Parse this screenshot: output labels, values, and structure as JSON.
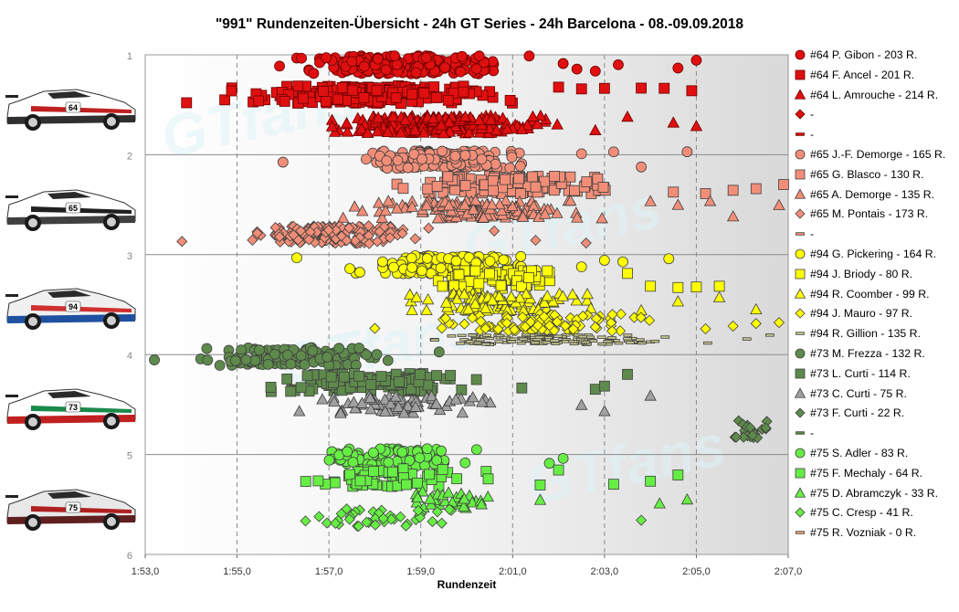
{
  "chart_data": {
    "type": "scatter",
    "title": "\"991\" Rundenzeiten-Übersicht  - 24h GT Series - 24h Barcelona  - 08.-09.09.2018",
    "xlabel": "Rundenzeit",
    "ylabel": "",
    "xlim": [
      113.0,
      127.0
    ],
    "ylim": [
      1,
      6
    ],
    "x_ticks": [
      "1:53,0",
      "1:55,0",
      "1:57,0",
      "1:59,0",
      "2:01,0",
      "2:03,0",
      "2:05,0",
      "2:07,0"
    ],
    "y_ticks": [
      "1",
      "2",
      "3",
      "4",
      "5",
      "6"
    ],
    "grid": "vertical dashed, horizontal solid",
    "legend_position": "right",
    "watermark": "GTfans",
    "series": [
      {
        "name": "#64 P. Gibon - 203 R.",
        "marker": "circle",
        "color": "#e01010",
        "y": 1.1,
        "range": [
          115.6,
          121.6
        ],
        "outliers": [
          122.1,
          122.4,
          122.8,
          123.3,
          124.6,
          125.0
        ],
        "count": 203
      },
      {
        "name": "#64 F. Ancel - 201 R.",
        "marker": "square",
        "color": "#e01010",
        "y": 1.4,
        "range": [
          114.4,
          121.6
        ],
        "outliers": [
          113.9,
          122.0,
          122.5,
          123.0,
          123.8,
          124.3,
          124.9
        ],
        "count": 201
      },
      {
        "name": "#64 L. Amrouche - 214 R.",
        "marker": "triangle",
        "color": "#e01010",
        "y": 1.7,
        "range": [
          116.2,
          122.4
        ],
        "outliers": [
          122.8,
          123.5,
          124.5,
          125.0
        ],
        "count": 214
      },
      {
        "name": "-",
        "marker": "diamond",
        "color": "#e01010",
        "y": null,
        "count": 0
      },
      {
        "name": "-",
        "marker": "dash",
        "color": "#e01010",
        "y": null,
        "count": 0
      },
      {
        "name": "#65 J.-F. Demorge - 165 R.",
        "marker": "circle",
        "color": "#f28e78",
        "y": 2.05,
        "range": [
          116.8,
          121.8
        ],
        "outliers": [
          116.0,
          122.5,
          123.2,
          123.8,
          124.8
        ],
        "count": 165
      },
      {
        "name": "#65 G. Blasco - 130 R.",
        "marker": "square",
        "color": "#f28e78",
        "y": 2.3,
        "range": [
          118.0,
          124.0
        ],
        "outliers": [
          124.5,
          125.2,
          125.8,
          126.3,
          126.9
        ],
        "count": 130
      },
      {
        "name": "#65 A. Demorge - 135 R.",
        "marker": "triangle",
        "color": "#f28e78",
        "y": 2.55,
        "range": [
          116.8,
          123.6
        ],
        "outliers": [
          124.0,
          124.6,
          125.3,
          125.8,
          126.8
        ],
        "count": 135
      },
      {
        "name": "#65 M. Pontais - 173 R.",
        "marker": "diamond",
        "color": "#f28e78",
        "y": 2.8,
        "range": [
          114.6,
          119.6
        ],
        "outliers": [
          113.8,
          120.6,
          121.5,
          122.6
        ],
        "count": 173
      },
      {
        "name": "-",
        "marker": "dash",
        "color": "#f28e78",
        "y": null,
        "count": 0
      },
      {
        "name": "#94 G. Pickering - 164 R.",
        "marker": "circle",
        "color": "#ffff00",
        "y": 3.1,
        "range": [
          117.2,
          122.0
        ],
        "outliers": [
          116.3,
          122.5,
          123.0,
          123.4,
          124.4
        ],
        "count": 164
      },
      {
        "name": "#94 J. Briody - 80 R.",
        "marker": "square",
        "color": "#ffff00",
        "y": 3.25,
        "range": [
          118.6,
          122.8
        ],
        "outliers": [
          123.5,
          124.0,
          124.6,
          125.0,
          125.5
        ],
        "count": 80
      },
      {
        "name": "#94 R. Coomber - 99 R.",
        "marker": "triangle",
        "color": "#ffff00",
        "y": 3.48,
        "range": [
          118.2,
          123.2
        ],
        "outliers": [
          123.8,
          124.6,
          125.5,
          126.3
        ],
        "count": 99
      },
      {
        "name": "#94 J. Mauro - 97 R.",
        "marker": "diamond",
        "color": "#ffff00",
        "y": 3.68,
        "range": [
          118.8,
          124.6
        ],
        "outliers": [
          118.0,
          125.2,
          125.8,
          126.3,
          126.8
        ],
        "count": 97
      },
      {
        "name": "#94 R. Gillion - 135 R.",
        "marker": "dash",
        "color": "#c8c890",
        "y": 3.85,
        "range": [
          118.6,
          125.6
        ],
        "outliers": [
          126.1,
          126.6
        ],
        "count": 135
      },
      {
        "name": "#73 M. Frezza - 132 R.",
        "marker": "circle",
        "color": "#5e8a4c",
        "y": 4.02,
        "range": [
          113.6,
          118.8
        ],
        "outliers": [
          113.2,
          119.4
        ],
        "count": 132
      },
      {
        "name": "#73 L. Curti - 114 R.",
        "marker": "square",
        "color": "#5e8a4c",
        "y": 4.28,
        "range": [
          115.0,
          120.6
        ],
        "outliers": [
          121.2,
          122.8,
          123.0,
          123.5
        ],
        "count": 114
      },
      {
        "name": "#73 C. Curti - 75 R.",
        "marker": "triangle",
        "color": "#a0a0a0",
        "y": 4.5,
        "range": [
          115.8,
          121.0
        ],
        "outliers": [
          122.5,
          123.0,
          124.0
        ],
        "count": 75
      },
      {
        "name": "#73 F. Curti - 22 R.",
        "marker": "diamond",
        "color": "#5e8a4c",
        "y": 4.75,
        "range": [
          125.7,
          126.9
        ],
        "outliers": [],
        "count": 22
      },
      {
        "name": "-",
        "marker": "dash",
        "color": "#5e8a4c",
        "y": null,
        "count": 0
      },
      {
        "name": "#75 S. Adler - 83 R.",
        "marker": "circle",
        "color": "#66ee44",
        "y": 5.03,
        "range": [
          116.3,
          120.6
        ],
        "outliers": [
          122.1,
          121.8
        ],
        "count": 83
      },
      {
        "name": "#75 F. Mechaly - 64 R.",
        "marker": "square",
        "color": "#66ee44",
        "y": 5.23,
        "range": [
          115.8,
          121.0
        ],
        "outliers": [
          121.6,
          122.0,
          123.2,
          124.0,
          124.6
        ],
        "count": 64
      },
      {
        "name": "#75 D. Abramczyk - 33 R.",
        "marker": "triangle",
        "color": "#66ee44",
        "y": 5.45,
        "range": [
          118.0,
          121.2
        ],
        "outliers": [
          121.6,
          124.2,
          124.8
        ],
        "count": 33
      },
      {
        "name": "#75 C. Cresp - 41 R.",
        "marker": "diamond",
        "color": "#66ee44",
        "y": 5.63,
        "range": [
          116.2,
          120.4
        ],
        "outliers": [
          123.8
        ],
        "count": 41
      },
      {
        "name": "#75 R. Vozniak - 0 R.",
        "marker": "dash",
        "color": "#f0a070",
        "y": null,
        "count": 0
      }
    ]
  },
  "cars": [
    {
      "number": "64",
      "body": "#ffffff",
      "accent": "#c02020",
      "lower": "#303030"
    },
    {
      "number": "65",
      "body": "#ffffff",
      "accent": "#202020",
      "lower": "#404040"
    },
    {
      "number": "94",
      "body": "#f0f0f0",
      "accent": "#d03030",
      "lower": "#2050a0"
    },
    {
      "number": "73",
      "body": "#ffffff",
      "accent": "#1a8a4a",
      "lower": "#c02020"
    },
    {
      "number": "75",
      "body": "#e8e8e8",
      "accent": "#b02020",
      "lower": "#602020"
    }
  ]
}
